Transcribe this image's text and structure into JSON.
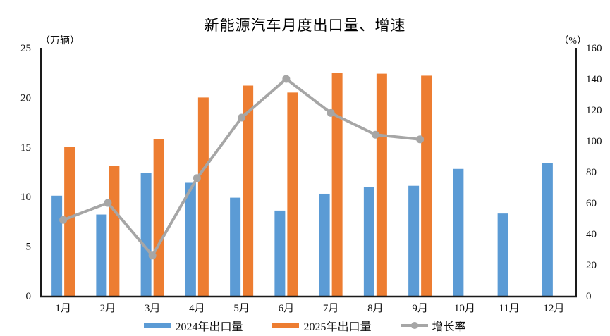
{
  "title": "新能源汽车月度出口量、增速",
  "left_axis_unit": "（万辆）",
  "right_axis_unit": "（%）",
  "legend": {
    "series_2024": "2024年出口量",
    "series_2025": "2025年出口量",
    "growth": "增长率"
  },
  "colors": {
    "bar_2024": "#5B9BD5",
    "bar_2025": "#ED7D31",
    "growth_line": "#A6A6A6",
    "axis": "#1a1a1a",
    "tick_text": "#111111"
  },
  "chart_data": {
    "type": "bar",
    "subtype": "grouped bars + line overlay (combo)",
    "title": "新能源汽车月度出口量、增速",
    "categories": [
      "1月",
      "2月",
      "3月",
      "4月",
      "5月",
      "6月",
      "7月",
      "8月",
      "9月",
      "10月",
      "11月",
      "12月"
    ],
    "series": [
      {
        "name": "2024年出口量",
        "chart": "bar",
        "axis": "left",
        "color": "#5B9BD5",
        "values": [
          10.1,
          8.2,
          12.4,
          11.4,
          9.9,
          8.6,
          10.3,
          11.0,
          11.1,
          12.8,
          8.3,
          13.4
        ]
      },
      {
        "name": "2025年出口量",
        "chart": "bar",
        "axis": "left",
        "color": "#ED7D31",
        "values": [
          15.0,
          13.1,
          15.8,
          20.0,
          21.2,
          20.5,
          22.5,
          22.4,
          22.2,
          null,
          null,
          null
        ]
      },
      {
        "name": "增长率",
        "chart": "line",
        "axis": "right",
        "color": "#A6A6A6",
        "values": [
          49,
          60,
          26,
          76,
          115,
          140,
          118,
          104,
          101,
          null,
          null,
          null
        ]
      }
    ],
    "left_axis": {
      "label": "（万辆）",
      "min": 0,
      "max": 25,
      "ticks": [
        0,
        5,
        10,
        15,
        20,
        25
      ]
    },
    "right_axis": {
      "label": "（%）",
      "min": 0,
      "max": 160,
      "ticks": [
        0,
        20,
        40,
        60,
        80,
        100,
        120,
        140,
        160
      ]
    },
    "grid": false,
    "legend_position": "bottom"
  }
}
